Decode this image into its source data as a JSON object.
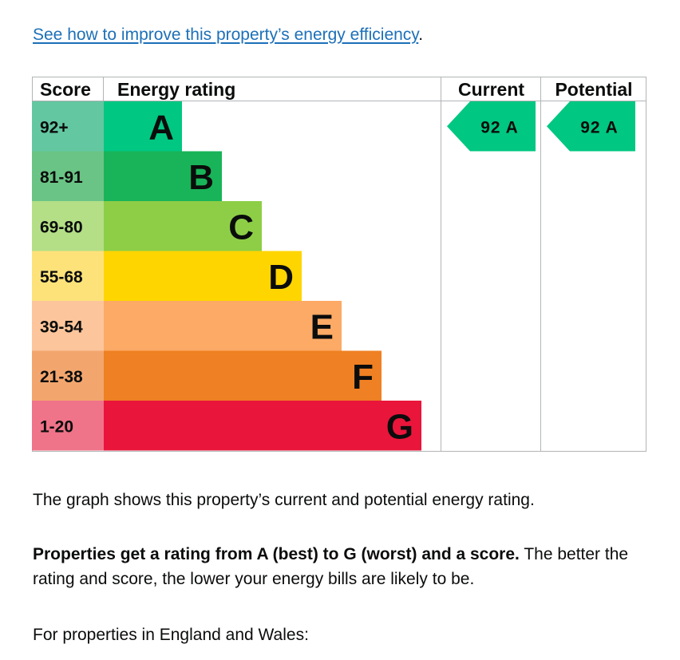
{
  "intro_link": {
    "text": "See how to improve this property’s energy efficiency",
    "trailing": "."
  },
  "chart_data": {
    "type": "bar",
    "column_headers": {
      "score": "Score",
      "rating": "Energy rating",
      "current": "Current",
      "potential": "Potential"
    },
    "bands": [
      {
        "score": "92+",
        "letter": "A",
        "color": "#00c781",
        "score_bg": "#63c7a2"
      },
      {
        "score": "81-91",
        "letter": "B",
        "color": "#19b459",
        "score_bg": "#6ac485"
      },
      {
        "score": "69-80",
        "letter": "C",
        "color": "#8dce46",
        "score_bg": "#b4df86"
      },
      {
        "score": "55-68",
        "letter": "D",
        "color": "#ffd500",
        "score_bg": "#fde27a"
      },
      {
        "score": "39-54",
        "letter": "E",
        "color": "#fcaa65",
        "score_bg": "#fcc59b"
      },
      {
        "score": "21-38",
        "letter": "F",
        "color": "#ef8023",
        "score_bg": "#f2a66e"
      },
      {
        "score": "1-20",
        "letter": "G",
        "color": "#e9153b",
        "score_bg": "#ef7389"
      }
    ],
    "current": {
      "value": 92,
      "band": "A",
      "label": "92 A",
      "color": "#00c781"
    },
    "potential": {
      "value": 92,
      "band": "A",
      "label": "92 A",
      "color": "#00c781"
    }
  },
  "paragraphs": {
    "graph_note": "The graph shows this property’s current and potential energy rating.",
    "rating_bold": "Properties get a rating from A (best) to G (worst) and a score.",
    "rating_rest": " The better the rating and score, the lower your energy bills are likely to be.",
    "england_wales": "For properties in England and Wales:"
  }
}
